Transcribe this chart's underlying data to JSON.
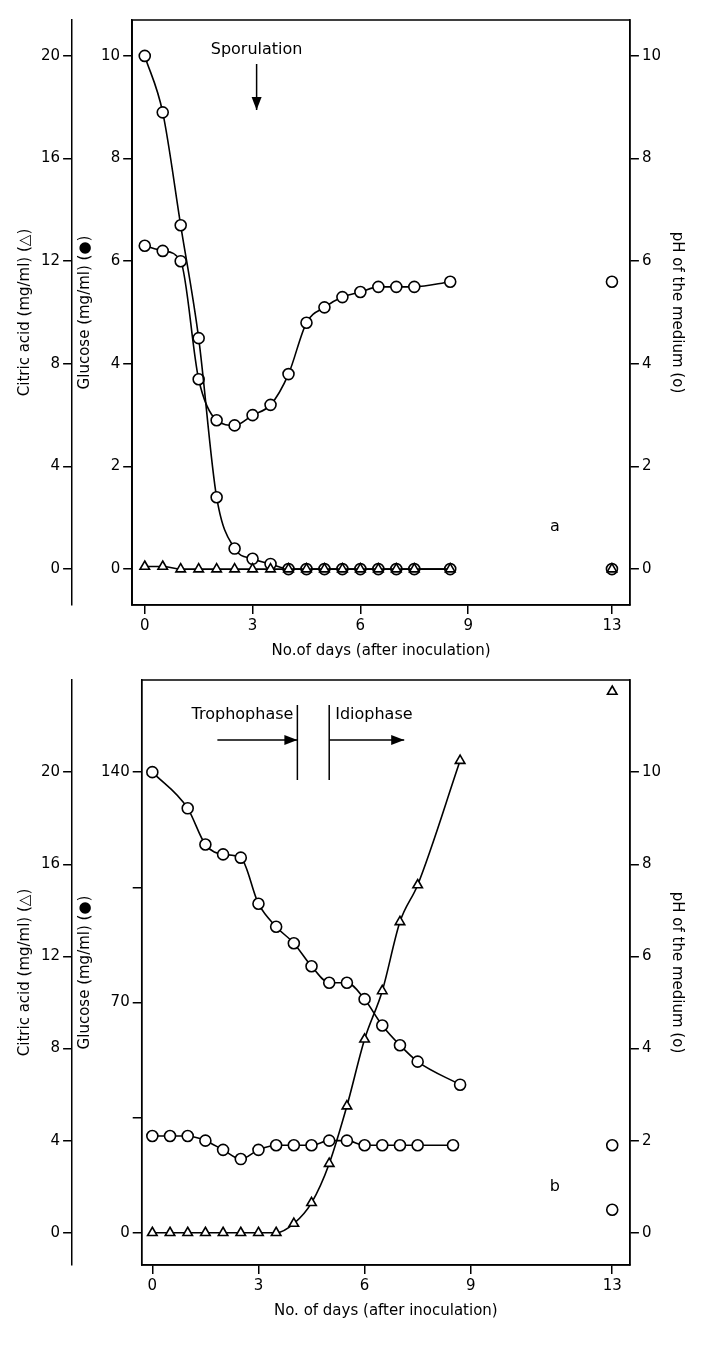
{
  "chart_data": [
    {
      "type": "line",
      "xlabel": "No.of days (after inoculation)",
      "ylabel": "Citric acid (mg/ml) (△)",
      "y2label": "Glucose (mg/ml) (●)",
      "y3label": "pH of the medium (o)",
      "xlim": [
        -0.35,
        13.5
      ],
      "xticks": [
        0,
        3,
        6,
        9,
        13
      ],
      "ylim": [
        -1.4,
        21.4
      ],
      "yticks": [
        0,
        4,
        8,
        12,
        16,
        20
      ],
      "y2lim": [
        -0.7,
        10.7
      ],
      "y2ticks": [
        0,
        2,
        4,
        6,
        8,
        10
      ],
      "y3lim": [
        -0.7,
        10.7
      ],
      "y3ticks": [
        0,
        2,
        4,
        6,
        8,
        10
      ],
      "line_style": "solid",
      "legend": false,
      "series": [
        {
          "color": "#000000",
          "marker": "triangle",
          "x": [
            0,
            0.5,
            1,
            1.5,
            2,
            2.5,
            3,
            3.5,
            4,
            4.5,
            5,
            5.5,
            6,
            6.5,
            7,
            7.5,
            8.5,
            10,
            13
          ],
          "values": [
            0.1,
            0.1,
            0,
            0,
            0,
            0,
            0,
            0,
            0,
            0,
            0,
            0,
            0,
            0,
            0,
            0,
            0,
            null,
            0
          ]
        },
        {
          "color": "#000000",
          "marker": "circle",
          "axis": "y2",
          "x": [
            0,
            0.5,
            1,
            1.5,
            2,
            2.5,
            3,
            3.5,
            4,
            4.5,
            5,
            5.5,
            6,
            6.5,
            7,
            7.5,
            8.5,
            10,
            13
          ],
          "values": [
            10,
            8.9,
            6.7,
            4.5,
            1.4,
            0.4,
            0.2,
            0.1,
            0,
            0,
            0,
            0,
            0,
            0,
            0,
            0,
            0,
            null,
            0
          ]
        },
        {
          "color": "#000000",
          "marker": "circle",
          "axis": "y3",
          "x": [
            0,
            0.5,
            1,
            1.5,
            2,
            2.5,
            3,
            3.5,
            4,
            4.5,
            5,
            5.5,
            6,
            6.5,
            7,
            7.5,
            8.5,
            10,
            13
          ],
          "values": [
            6.3,
            6.2,
            6.0,
            3.7,
            2.9,
            2.8,
            3.0,
            3.2,
            3.8,
            4.8,
            5.1,
            5.3,
            5.4,
            5.5,
            5.5,
            5.5,
            5.6,
            null,
            5.6
          ]
        }
      ],
      "annotations": [
        "Sporulation",
        "a"
      ]
    },
    {
      "type": "line",
      "xlabel": "No. of days (after inoculation)",
      "ylabel": "Citric acid (mg/ml) (△)",
      "y2label": "Glucose (mg/ml) (●)",
      "y3label": "pH of the medium (o)",
      "xlim": [
        -0.3,
        13.5
      ],
      "xticks": [
        0,
        3,
        6,
        9,
        13
      ],
      "ylim": [
        -1.4,
        24
      ],
      "yticks": [
        0,
        4,
        8,
        12,
        16,
        20
      ],
      "y2lim": [
        -9.8,
        168
      ],
      "y2ticks": [
        0,
        {
          "value": 35,
          "label": null
        },
        70,
        {
          "value": 105,
          "label": null
        },
        140
      ],
      "y3lim": [
        -0.7,
        12
      ],
      "y3ticks": [
        0,
        2,
        4,
        6,
        8,
        10
      ],
      "line_style": "solid",
      "legend": false,
      "series": [
        {
          "color": "#000000",
          "marker": "triangle",
          "x": [
            0,
            0.5,
            1,
            1.5,
            2,
            2.5,
            3,
            3.5,
            4,
            4.5,
            5,
            5.5,
            6,
            6.5,
            7,
            7.5,
            8.7,
            10,
            13
          ],
          "values": [
            0,
            0,
            0,
            0,
            0,
            0,
            0,
            0,
            0.4,
            1.3,
            3.0,
            5.5,
            8.4,
            10.5,
            13.5,
            15.1,
            20.5,
            null,
            23.5
          ]
        },
        {
          "color": "#000000",
          "marker": "circle",
          "axis": "y2",
          "x": [
            0,
            1,
            1.5,
            2,
            2.5,
            3,
            3.5,
            4,
            4.5,
            5,
            5.5,
            6,
            6.5,
            7,
            7.5,
            8.7,
            10,
            13
          ],
          "values": [
            140,
            129,
            118,
            115,
            114,
            100,
            93,
            88,
            81,
            76,
            76,
            71,
            63,
            57,
            52,
            45,
            null,
            7
          ]
        },
        {
          "color": "#000000",
          "marker": "circle",
          "axis": "y3",
          "x": [
            0,
            0.5,
            1,
            1.5,
            2,
            2.5,
            3,
            3.5,
            4,
            4.5,
            5,
            5.5,
            6,
            6.5,
            7,
            7.5,
            8.5,
            10,
            13
          ],
          "values": [
            2.1,
            2.1,
            2.1,
            2.0,
            1.8,
            1.6,
            1.8,
            1.9,
            1.9,
            1.9,
            2.0,
            2.0,
            1.9,
            1.9,
            1.9,
            1.9,
            1.9,
            null,
            1.9
          ]
        }
      ],
      "ref_lines": [
        {
          "axis": "x",
          "value": 4.1,
          "label": "Trophophase"
        },
        {
          "axis": "x",
          "value": 5,
          "label": "Idiophase"
        }
      ],
      "annotations": [
        "b"
      ]
    }
  ]
}
